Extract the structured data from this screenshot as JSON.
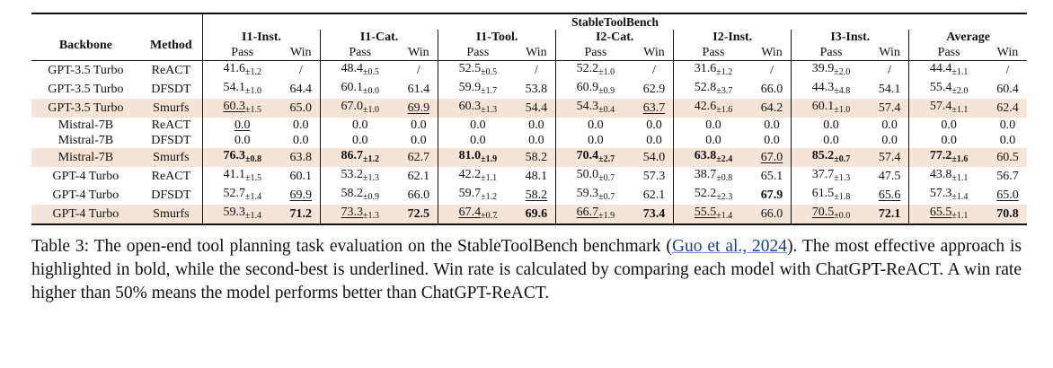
{
  "table": {
    "superheader": "StableToolBench",
    "col_backbone": "Backbone",
    "col_method": "Method",
    "groups": [
      "I1-Inst.",
      "I1-Cat.",
      "I1-Tool.",
      "I2-Cat.",
      "I2-Inst.",
      "I3-Inst.",
      "Average"
    ],
    "sub_pass": "Pass",
    "sub_win": "Win",
    "rows": [
      {
        "backbone": "GPT-3.5 Turbo",
        "method": "ReACT",
        "hl": false,
        "cells": [
          {
            "v": "41.6",
            "pm": "±1.2"
          },
          {
            "v": "/"
          },
          {
            "v": "48.4",
            "pm": "±0.5"
          },
          {
            "v": "/"
          },
          {
            "v": "52.5",
            "pm": "±0.5"
          },
          {
            "v": "/"
          },
          {
            "v": "52.2",
            "pm": "±1.0"
          },
          {
            "v": "/"
          },
          {
            "v": "31.6",
            "pm": "±1.2"
          },
          {
            "v": "/"
          },
          {
            "v": "39.9",
            "pm": "±2.0"
          },
          {
            "v": "/"
          },
          {
            "v": "44.4",
            "pm": "±1.1"
          },
          {
            "v": "/"
          }
        ]
      },
      {
        "backbone": "GPT-3.5 Turbo",
        "method": "DFSDT",
        "hl": false,
        "cells": [
          {
            "v": "54.1",
            "pm": "±1.0"
          },
          {
            "v": "64.4"
          },
          {
            "v": "60.1",
            "pm": "±0.0"
          },
          {
            "v": "61.4"
          },
          {
            "v": "59.9",
            "pm": "±1.7"
          },
          {
            "v": "53.8"
          },
          {
            "v": "60.9",
            "pm": "±0.9"
          },
          {
            "v": "62.9"
          },
          {
            "v": "52.8",
            "pm": "±3.7"
          },
          {
            "v": "66.0"
          },
          {
            "v": "44.3",
            "pm": "±4.8"
          },
          {
            "v": "54.1"
          },
          {
            "v": "55.4",
            "pm": "±2.0"
          },
          {
            "v": "60.4"
          }
        ]
      },
      {
        "backbone": "GPT-3.5 Turbo",
        "method": "Smurfs",
        "hl": true,
        "cells": [
          {
            "v": "60.3",
            "pm": "±1.5",
            "u": true
          },
          {
            "v": "65.0"
          },
          {
            "v": "67.0",
            "pm": "±1.0"
          },
          {
            "v": "69.9",
            "u": true
          },
          {
            "v": "60.3",
            "pm": "±1.3"
          },
          {
            "v": "54.4"
          },
          {
            "v": "54.3",
            "pm": "±0.4"
          },
          {
            "v": "63.7",
            "u": true
          },
          {
            "v": "42.6",
            "pm": "±1.6"
          },
          {
            "v": "64.2"
          },
          {
            "v": "60.1",
            "pm": "±1.0"
          },
          {
            "v": "57.4"
          },
          {
            "v": "57.4",
            "pm": "±1.1"
          },
          {
            "v": "62.4"
          }
        ]
      },
      {
        "backbone": "Mistral-7B",
        "method": "ReACT",
        "hl": false,
        "cells": [
          {
            "v": "0.0",
            "u": true
          },
          {
            "v": "0.0"
          },
          {
            "v": "0.0"
          },
          {
            "v": "0.0"
          },
          {
            "v": "0.0"
          },
          {
            "v": "0.0"
          },
          {
            "v": "0.0"
          },
          {
            "v": "0.0"
          },
          {
            "v": "0.0"
          },
          {
            "v": "0.0"
          },
          {
            "v": "0.0"
          },
          {
            "v": "0.0"
          },
          {
            "v": "0.0"
          },
          {
            "v": "0.0"
          }
        ]
      },
      {
        "backbone": "Mistral-7B",
        "method": "DFSDT",
        "hl": false,
        "cells": [
          {
            "v": "0.0"
          },
          {
            "v": "0.0"
          },
          {
            "v": "0.0"
          },
          {
            "v": "0.0"
          },
          {
            "v": "0.0"
          },
          {
            "v": "0.0"
          },
          {
            "v": "0.0"
          },
          {
            "v": "0.0"
          },
          {
            "v": "0.0"
          },
          {
            "v": "0.0"
          },
          {
            "v": "0.0"
          },
          {
            "v": "0.0"
          },
          {
            "v": "0.0"
          },
          {
            "v": "0.0"
          }
        ]
      },
      {
        "backbone": "Mistral-7B",
        "method": "Smurfs",
        "hl": true,
        "cells": [
          {
            "v": "76.3",
            "pm": "±0.8",
            "b": true
          },
          {
            "v": "63.8"
          },
          {
            "v": "86.7",
            "pm": "±1.2",
            "b": true
          },
          {
            "v": "62.7"
          },
          {
            "v": "81.0",
            "pm": "±1.9",
            "b": true
          },
          {
            "v": "58.2"
          },
          {
            "v": "70.4",
            "pm": "±2.7",
            "b": true
          },
          {
            "v": "54.0"
          },
          {
            "v": "63.8",
            "pm": "±2.4",
            "b": true
          },
          {
            "v": "67.0",
            "u": true
          },
          {
            "v": "85.2",
            "pm": "±0.7",
            "b": true
          },
          {
            "v": "57.4"
          },
          {
            "v": "77.2",
            "pm": "±1.6",
            "b": true
          },
          {
            "v": "60.5"
          }
        ]
      },
      {
        "backbone": "GPT-4 Turbo",
        "method": "ReACT",
        "hl": false,
        "cells": [
          {
            "v": "41.1",
            "pm": "±1.5"
          },
          {
            "v": "60.1"
          },
          {
            "v": "53.2",
            "pm": "±1.3"
          },
          {
            "v": "62.1"
          },
          {
            "v": "42.2",
            "pm": "±1.1"
          },
          {
            "v": "48.1"
          },
          {
            "v": "50.0",
            "pm": "±0.7"
          },
          {
            "v": "57.3"
          },
          {
            "v": "38.7",
            "pm": "±0.8"
          },
          {
            "v": "65.1"
          },
          {
            "v": "37.7",
            "pm": "±1.3"
          },
          {
            "v": "47.5"
          },
          {
            "v": "43.8",
            "pm": "±1.1"
          },
          {
            "v": "56.7"
          }
        ]
      },
      {
        "backbone": "GPT-4 Turbo",
        "method": "DFSDT",
        "hl": false,
        "cells": [
          {
            "v": "52.7",
            "pm": "±1.4"
          },
          {
            "v": "69.9",
            "u": true
          },
          {
            "v": "58.2",
            "pm": "±0.9"
          },
          {
            "v": "66.0"
          },
          {
            "v": "59.7",
            "pm": "±1.2"
          },
          {
            "v": "58.2",
            "u": true
          },
          {
            "v": "59.3",
            "pm": "±0.7"
          },
          {
            "v": "62.1"
          },
          {
            "v": "52.2",
            "pm": "±2.3"
          },
          {
            "v": "67.9",
            "b": true
          },
          {
            "v": "61.5",
            "pm": "±1.8"
          },
          {
            "v": "65.6",
            "u": true
          },
          {
            "v": "57.3",
            "pm": "±1.4"
          },
          {
            "v": "65.0",
            "u": true
          }
        ]
      },
      {
        "backbone": "GPT-4 Turbo",
        "method": "Smurfs",
        "hl": true,
        "cells": [
          {
            "v": "59.3",
            "pm": "±1.4"
          },
          {
            "v": "71.2",
            "b": true
          },
          {
            "v": "73.3",
            "pm": "±1.3",
            "u": true
          },
          {
            "v": "72.5",
            "b": true
          },
          {
            "v": "67.4",
            "pm": "±0.7",
            "u": true
          },
          {
            "v": "69.6",
            "b": true
          },
          {
            "v": "66.7",
            "pm": "±1.9",
            "u": true
          },
          {
            "v": "73.4",
            "b": true
          },
          {
            "v": "55.5",
            "pm": "±1.4",
            "u": true
          },
          {
            "v": "66.0"
          },
          {
            "v": "70.5",
            "pm": "±0.0",
            "u": true
          },
          {
            "v": "72.1",
            "b": true
          },
          {
            "v": "65.5",
            "pm": "±1.1",
            "u": true
          },
          {
            "v": "70.8",
            "b": true
          }
        ]
      }
    ]
  },
  "caption": {
    "before": "Table 3: The open-end tool planning task evaluation on the StableToolBench benchmark (",
    "cite": "Guo et al., 2024",
    "after": "). The most effective approach is highlighted in bold, while the second-best is underlined. Win rate is calculated by comparing each model with ChatGPT-ReACT. A win rate higher than 50% means the model performs better than ChatGPT-ReACT."
  },
  "colors": {
    "highlight_row": "#f4e4d8",
    "citation_link": "#1a3d8f"
  }
}
